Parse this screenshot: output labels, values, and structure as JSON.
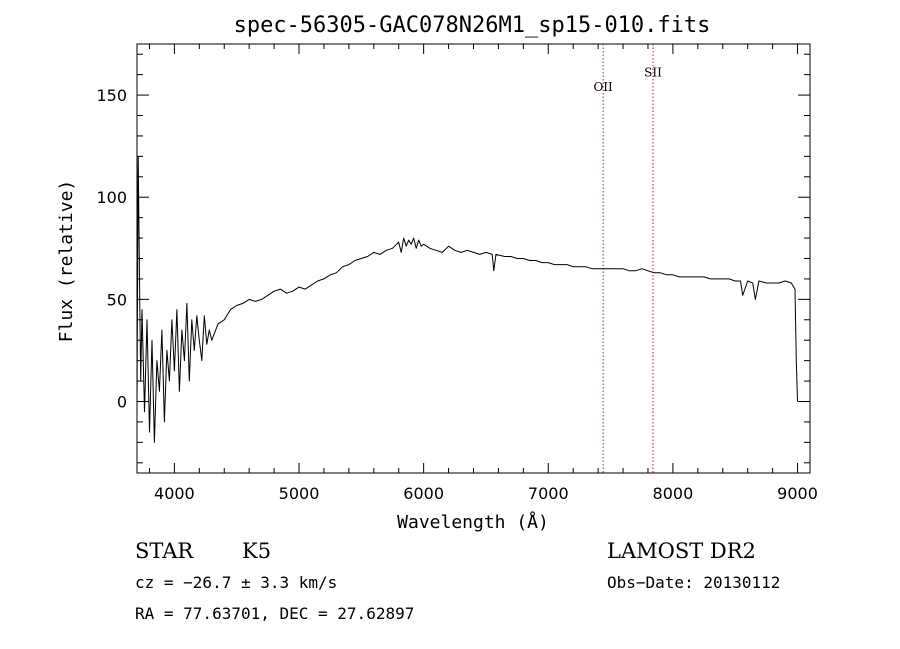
{
  "chart_data": {
    "type": "line",
    "title": "spec-56305-GAC078N26M1_sp15-010.fits",
    "xlabel": "Wavelength (Å)",
    "ylabel": "Flux (relative)",
    "xlim": [
      3700,
      9100
    ],
    "ylim": [
      -35,
      175
    ],
    "x_ticks": [
      4000,
      5000,
      6000,
      7000,
      8000,
      9000
    ],
    "y_ticks": [
      0,
      50,
      100,
      150
    ],
    "grid": false,
    "series": [
      {
        "x": [
          3700,
          3710,
          3720,
          3730,
          3740,
          3760,
          3780,
          3800,
          3820,
          3840,
          3860,
          3880,
          3900,
          3920,
          3940,
          3960,
          3980,
          4000,
          4020,
          4040,
          4060,
          4080,
          4100,
          4120,
          4140,
          4160,
          4180,
          4200,
          4220,
          4240,
          4260,
          4280,
          4300,
          4350,
          4400,
          4450,
          4500,
          4550,
          4600,
          4650,
          4700,
          4750,
          4800,
          4850,
          4900,
          4950,
          5000,
          5050,
          5100,
          5150,
          5200,
          5250,
          5300,
          5350,
          5400,
          5450,
          5500,
          5550,
          5600,
          5650,
          5700,
          5750,
          5800,
          5820,
          5840,
          5860,
          5880,
          5900,
          5920,
          5940,
          5960,
          5980,
          6000,
          6050,
          6100,
          6150,
          6200,
          6250,
          6300,
          6350,
          6400,
          6450,
          6500,
          6550,
          6563,
          6580,
          6650,
          6700,
          6750,
          6800,
          6850,
          6900,
          6950,
          7000,
          7050,
          7100,
          7150,
          7200,
          7250,
          7300,
          7350,
          7400,
          7450,
          7500,
          7550,
          7600,
          7650,
          7700,
          7750,
          7800,
          7850,
          7900,
          7950,
          8000,
          8050,
          8100,
          8150,
          8200,
          8250,
          8300,
          8350,
          8400,
          8450,
          8500,
          8542,
          8560,
          8600,
          8640,
          8662,
          8690,
          8750,
          8800,
          8850,
          8900,
          8950,
          8980,
          8990,
          9000
        ],
        "y": [
          0,
          120,
          60,
          10,
          45,
          -5,
          40,
          -15,
          30,
          -20,
          20,
          5,
          35,
          -10,
          25,
          10,
          40,
          15,
          45,
          5,
          35,
          20,
          48,
          10,
          40,
          25,
          42,
          30,
          20,
          42,
          28,
          35,
          30,
          38,
          40,
          45,
          47,
          48,
          50,
          49,
          50,
          52,
          54,
          55,
          53,
          54,
          56,
          55,
          57,
          59,
          60,
          62,
          63,
          66,
          67,
          69,
          70,
          71,
          73,
          72,
          74,
          75,
          78,
          73,
          80,
          76,
          79,
          77,
          80,
          75,
          79,
          76,
          77,
          75,
          74,
          73,
          76,
          74,
          73,
          74,
          73,
          72,
          73,
          72,
          64,
          72,
          71,
          71,
          70,
          70,
          69,
          69,
          68,
          68,
          67,
          67,
          67,
          66,
          66,
          66,
          65,
          65,
          65,
          65,
          65,
          65,
          64,
          64,
          65,
          64,
          63,
          63,
          62,
          62,
          61,
          61,
          61,
          61,
          61,
          60,
          60,
          60,
          60,
          59,
          59,
          52,
          59,
          58,
          50,
          59,
          58,
          58,
          58,
          59,
          58,
          55,
          20,
          0
        ]
      }
    ],
    "annotations": [
      {
        "label": "OII",
        "x": 7440,
        "y": 152
      },
      {
        "label": "SII",
        "x": 7840,
        "y": 159
      }
    ]
  },
  "footer": {
    "object_type": "STAR",
    "subclass": "K5",
    "redshift": "cz = −26.7 ± 3.3 km/s",
    "coords": "RA =  77.63701, DEC =  27.62897",
    "survey": "LAMOST DR2",
    "obs_date": "Obs−Date: 20130112"
  }
}
